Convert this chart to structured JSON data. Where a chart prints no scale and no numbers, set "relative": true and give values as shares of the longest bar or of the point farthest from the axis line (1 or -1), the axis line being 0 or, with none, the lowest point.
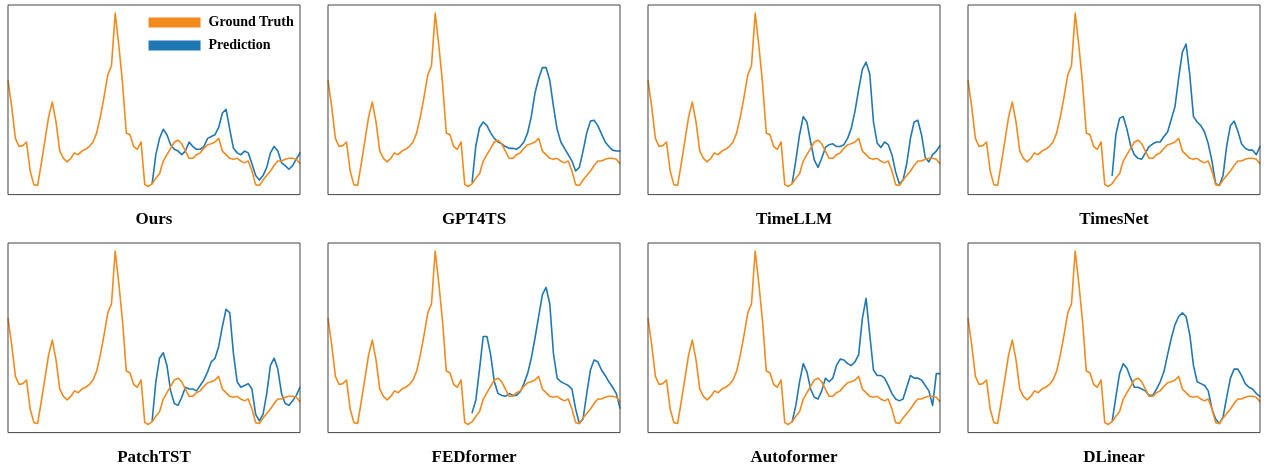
{
  "chart_data": [
    {
      "type": "line",
      "title": "Ours",
      "relative": true,
      "legend": "top right",
      "marker": "none",
      "line_style": "solid",
      "grid": false,
      "tick_labels": false,
      "categories": [
        null,
        null,
        null,
        null,
        null,
        null,
        null,
        null,
        null,
        null,
        null,
        null,
        null,
        null,
        null,
        null,
        null,
        null,
        null,
        null,
        null,
        null,
        null,
        null,
        null,
        null,
        null,
        null,
        null,
        null,
        null,
        null,
        null,
        null,
        null,
        null,
        null,
        null,
        null,
        null,
        null,
        null,
        null,
        null,
        null,
        null,
        null,
        null,
        null,
        null,
        null,
        null,
        null,
        null,
        null,
        null,
        null,
        null,
        null,
        null,
        null,
        null,
        null,
        null,
        null,
        null,
        null,
        null,
        null,
        null,
        null,
        null,
        null,
        null,
        null,
        null,
        null,
        null,
        null,
        null
      ],
      "series": [
        {
          "name": "Ground Truth",
          "color": "#f28a1e",
          "values": [
            0.63,
            0.485,
            0.31,
            0.265,
            0.27,
            0.29,
            0.13,
            0.055,
            0.05,
            0.17,
            0.3,
            0.43,
            0.51,
            0.4,
            0.24,
            0.2,
            0.18,
            0.2,
            0.23,
            0.22,
            0.24,
            0.25,
            0.265,
            0.29,
            0.34,
            0.43,
            0.54,
            0.66,
            0.71,
            1.0,
            0.82,
            0.61,
            0.34,
            0.33,
            0.265,
            0.25,
            0.29,
            0.055,
            0.045,
            0.06,
            0.09,
            0.115,
            0.185,
            0.22,
            0.255,
            0.29,
            0.3,
            0.28,
            0.24,
            0.2,
            0.2,
            0.22,
            0.23,
            0.255,
            0.275,
            0.28,
            0.29,
            0.31,
            0.24,
            0.22,
            0.2,
            0.195,
            0.2,
            0.185,
            0.175,
            0.185,
            0.13,
            0.055,
            0.05,
            0.08,
            0.105,
            0.13,
            0.16,
            0.185,
            0.185,
            0.195,
            0.2,
            0.2,
            0.195,
            0.17
          ]
        },
        {
          "name": "Prediction",
          "color": "#1f77b4",
          "values": [
            null,
            null,
            null,
            null,
            null,
            null,
            null,
            null,
            null,
            null,
            null,
            null,
            null,
            null,
            null,
            null,
            null,
            null,
            null,
            null,
            null,
            null,
            null,
            null,
            null,
            null,
            null,
            null,
            null,
            null,
            null,
            null,
            null,
            null,
            null,
            null,
            null,
            null,
            null,
            0.06,
            0.22,
            0.31,
            0.36,
            0.33,
            0.275,
            0.25,
            0.24,
            0.22,
            0.24,
            0.29,
            0.265,
            0.25,
            0.25,
            0.265,
            0.31,
            0.32,
            0.33,
            0.37,
            0.45,
            0.47,
            0.36,
            0.255,
            0.23,
            0.22,
            0.24,
            0.23,
            0.17,
            0.105,
            0.08,
            0.105,
            0.15,
            0.23,
            0.265,
            0.24,
            0.175,
            0.16,
            0.14,
            0.16,
            0.195,
            0.23
          ]
        }
      ]
    },
    {
      "type": "line",
      "title": "GPT4TS",
      "relative": true,
      "marker": "none",
      "line_style": "solid",
      "grid": false,
      "tick_labels": false,
      "categories": [
        null,
        null,
        null,
        null,
        null,
        null,
        null,
        null,
        null,
        null,
        null,
        null,
        null,
        null,
        null,
        null,
        null,
        null,
        null,
        null,
        null,
        null,
        null,
        null,
        null,
        null,
        null,
        null,
        null,
        null,
        null,
        null,
        null,
        null,
        null,
        null,
        null,
        null,
        null,
        null,
        null,
        null,
        null,
        null,
        null,
        null,
        null,
        null,
        null,
        null,
        null,
        null,
        null,
        null,
        null,
        null,
        null,
        null,
        null,
        null,
        null,
        null,
        null,
        null,
        null,
        null,
        null,
        null,
        null,
        null,
        null,
        null,
        null,
        null,
        null,
        null,
        null,
        null,
        null,
        null
      ],
      "series": [
        {
          "color": "#f28a1e",
          "values": [
            0.63,
            0.485,
            0.31,
            0.265,
            0.27,
            0.29,
            0.13,
            0.055,
            0.05,
            0.17,
            0.3,
            0.43,
            0.51,
            0.4,
            0.24,
            0.2,
            0.18,
            0.2,
            0.23,
            0.22,
            0.24,
            0.25,
            0.265,
            0.29,
            0.34,
            0.43,
            0.54,
            0.66,
            0.71,
            1.0,
            0.82,
            0.61,
            0.34,
            0.33,
            0.265,
            0.25,
            0.29,
            0.055,
            0.045,
            0.06,
            0.09,
            0.115,
            0.185,
            0.22,
            0.255,
            0.29,
            0.3,
            0.28,
            0.24,
            0.2,
            0.2,
            0.22,
            0.23,
            0.255,
            0.275,
            0.28,
            0.29,
            0.31,
            0.24,
            0.22,
            0.2,
            0.195,
            0.2,
            0.185,
            0.175,
            0.185,
            0.13,
            0.055,
            0.05,
            0.08,
            0.105,
            0.13,
            0.16,
            0.185,
            0.185,
            0.195,
            0.2,
            0.2,
            0.195,
            0.17
          ]
        },
        {
          "color": "#1f77b4",
          "values": [
            null,
            null,
            null,
            null,
            null,
            null,
            null,
            null,
            null,
            null,
            null,
            null,
            null,
            null,
            null,
            null,
            null,
            null,
            null,
            null,
            null,
            null,
            null,
            null,
            null,
            null,
            null,
            null,
            null,
            null,
            null,
            null,
            null,
            null,
            null,
            null,
            null,
            null,
            null,
            0.07,
            0.27,
            0.37,
            0.4,
            0.38,
            0.34,
            0.31,
            0.29,
            0.28,
            0.265,
            0.255,
            0.255,
            0.25,
            0.265,
            0.29,
            0.34,
            0.43,
            0.56,
            0.64,
            0.7,
            0.7,
            0.63,
            0.485,
            0.36,
            0.29,
            0.255,
            0.22,
            0.185,
            0.13,
            0.15,
            0.24,
            0.34,
            0.405,
            0.41,
            0.38,
            0.335,
            0.29,
            0.265,
            0.245,
            0.24,
            0.24
          ]
        }
      ]
    },
    {
      "type": "line",
      "title": "TimeLLM",
      "relative": true,
      "marker": "none",
      "line_style": "solid",
      "grid": false,
      "tick_labels": false,
      "categories": [
        null,
        null,
        null,
        null,
        null,
        null,
        null,
        null,
        null,
        null,
        null,
        null,
        null,
        null,
        null,
        null,
        null,
        null,
        null,
        null,
        null,
        null,
        null,
        null,
        null,
        null,
        null,
        null,
        null,
        null,
        null,
        null,
        null,
        null,
        null,
        null,
        null,
        null,
        null,
        null,
        null,
        null,
        null,
        null,
        null,
        null,
        null,
        null,
        null,
        null,
        null,
        null,
        null,
        null,
        null,
        null,
        null,
        null,
        null,
        null,
        null,
        null,
        null,
        null,
        null,
        null,
        null,
        null,
        null,
        null,
        null,
        null,
        null,
        null,
        null,
        null,
        null,
        null,
        null,
        null
      ],
      "series": [
        {
          "color": "#f28a1e",
          "values": [
            0.63,
            0.485,
            0.31,
            0.265,
            0.27,
            0.29,
            0.13,
            0.055,
            0.05,
            0.17,
            0.3,
            0.43,
            0.51,
            0.4,
            0.24,
            0.2,
            0.18,
            0.2,
            0.23,
            0.22,
            0.24,
            0.25,
            0.265,
            0.29,
            0.34,
            0.43,
            0.54,
            0.66,
            0.71,
            1.0,
            0.82,
            0.61,
            0.34,
            0.33,
            0.265,
            0.25,
            0.29,
            0.055,
            0.045,
            0.06,
            0.09,
            0.115,
            0.185,
            0.22,
            0.255,
            0.29,
            0.3,
            0.28,
            0.24,
            0.2,
            0.2,
            0.22,
            0.23,
            0.255,
            0.275,
            0.28,
            0.29,
            0.31,
            0.24,
            0.22,
            0.2,
            0.195,
            0.2,
            0.185,
            0.175,
            0.185,
            0.13,
            0.055,
            0.05,
            0.08,
            0.105,
            0.13,
            0.16,
            0.185,
            0.185,
            0.195,
            0.2,
            0.2,
            0.195,
            0.17
          ]
        },
        {
          "color": "#1f77b4",
          "values": [
            null,
            null,
            null,
            null,
            null,
            null,
            null,
            null,
            null,
            null,
            null,
            null,
            null,
            null,
            null,
            null,
            null,
            null,
            null,
            null,
            null,
            null,
            null,
            null,
            null,
            null,
            null,
            null,
            null,
            null,
            null,
            null,
            null,
            null,
            null,
            null,
            null,
            null,
            null,
            0.06,
            0.19,
            0.33,
            0.43,
            0.4,
            0.29,
            0.19,
            0.15,
            0.2,
            0.26,
            0.275,
            0.28,
            0.265,
            0.265,
            0.275,
            0.31,
            0.365,
            0.46,
            0.58,
            0.69,
            0.73,
            0.665,
            0.4,
            0.285,
            0.26,
            0.29,
            0.275,
            0.22,
            0.125,
            0.06,
            0.08,
            0.17,
            0.31,
            0.4,
            0.41,
            0.33,
            0.205,
            0.18,
            0.22,
            0.24,
            0.27
          ]
        }
      ]
    },
    {
      "type": "line",
      "title": "TimesNet",
      "relative": true,
      "marker": "none",
      "line_style": "solid",
      "grid": false,
      "tick_labels": false,
      "categories": [
        null,
        null,
        null,
        null,
        null,
        null,
        null,
        null,
        null,
        null,
        null,
        null,
        null,
        null,
        null,
        null,
        null,
        null,
        null,
        null,
        null,
        null,
        null,
        null,
        null,
        null,
        null,
        null,
        null,
        null,
        null,
        null,
        null,
        null,
        null,
        null,
        null,
        null,
        null,
        null,
        null,
        null,
        null,
        null,
        null,
        null,
        null,
        null,
        null,
        null,
        null,
        null,
        null,
        null,
        null,
        null,
        null,
        null,
        null,
        null,
        null,
        null,
        null,
        null,
        null,
        null,
        null,
        null,
        null,
        null,
        null,
        null,
        null,
        null,
        null,
        null,
        null,
        null,
        null,
        null
      ],
      "series": [
        {
          "color": "#f28a1e",
          "values": [
            0.63,
            0.485,
            0.31,
            0.265,
            0.27,
            0.29,
            0.13,
            0.055,
            0.05,
            0.17,
            0.3,
            0.43,
            0.51,
            0.4,
            0.24,
            0.2,
            0.18,
            0.2,
            0.23,
            0.22,
            0.24,
            0.25,
            0.265,
            0.29,
            0.34,
            0.43,
            0.54,
            0.66,
            0.71,
            1.0,
            0.82,
            0.61,
            0.34,
            0.33,
            0.265,
            0.25,
            0.29,
            0.055,
            0.045,
            0.06,
            0.09,
            0.115,
            0.185,
            0.22,
            0.255,
            0.29,
            0.3,
            0.28,
            0.24,
            0.2,
            0.2,
            0.22,
            0.23,
            0.255,
            0.275,
            0.28,
            0.29,
            0.31,
            0.24,
            0.22,
            0.2,
            0.195,
            0.2,
            0.185,
            0.175,
            0.185,
            0.13,
            0.055,
            0.05,
            0.08,
            0.105,
            0.13,
            0.16,
            0.185,
            0.185,
            0.195,
            0.2,
            0.2,
            0.195,
            0.17
          ]
        },
        {
          "color": "#1f77b4",
          "values": [
            null,
            null,
            null,
            null,
            null,
            null,
            null,
            null,
            null,
            null,
            null,
            null,
            null,
            null,
            null,
            null,
            null,
            null,
            null,
            null,
            null,
            null,
            null,
            null,
            null,
            null,
            null,
            null,
            null,
            null,
            null,
            null,
            null,
            null,
            null,
            null,
            null,
            null,
            null,
            0.105,
            0.33,
            0.42,
            0.43,
            0.36,
            0.27,
            0.22,
            0.2,
            0.195,
            0.23,
            0.265,
            0.28,
            0.29,
            0.29,
            0.32,
            0.345,
            0.415,
            0.485,
            0.645,
            0.785,
            0.83,
            0.66,
            0.43,
            0.4,
            0.38,
            0.345,
            0.28,
            0.185,
            0.06,
            0.05,
            0.105,
            0.27,
            0.38,
            0.405,
            0.35,
            0.28,
            0.255,
            0.245,
            0.245,
            0.22,
            0.265
          ]
        }
      ]
    },
    {
      "type": "line",
      "title": "PatchTST",
      "relative": true,
      "marker": "none",
      "line_style": "solid",
      "grid": false,
      "tick_labels": false,
      "categories": [
        null,
        null,
        null,
        null,
        null,
        null,
        null,
        null,
        null,
        null,
        null,
        null,
        null,
        null,
        null,
        null,
        null,
        null,
        null,
        null,
        null,
        null,
        null,
        null,
        null,
        null,
        null,
        null,
        null,
        null,
        null,
        null,
        null,
        null,
        null,
        null,
        null,
        null,
        null,
        null,
        null,
        null,
        null,
        null,
        null,
        null,
        null,
        null,
        null,
        null,
        null,
        null,
        null,
        null,
        null,
        null,
        null,
        null,
        null,
        null,
        null,
        null,
        null,
        null,
        null,
        null,
        null,
        null,
        null,
        null,
        null,
        null,
        null,
        null,
        null,
        null,
        null,
        null,
        null,
        null
      ],
      "series": [
        {
          "color": "#f28a1e",
          "values": [
            0.63,
            0.485,
            0.31,
            0.265,
            0.27,
            0.29,
            0.13,
            0.055,
            0.05,
            0.17,
            0.3,
            0.43,
            0.51,
            0.4,
            0.24,
            0.2,
            0.18,
            0.2,
            0.23,
            0.22,
            0.24,
            0.25,
            0.265,
            0.29,
            0.34,
            0.43,
            0.54,
            0.66,
            0.71,
            1.0,
            0.82,
            0.61,
            0.34,
            0.33,
            0.265,
            0.25,
            0.29,
            0.055,
            0.045,
            0.06,
            0.09,
            0.115,
            0.185,
            0.22,
            0.255,
            0.29,
            0.3,
            0.28,
            0.24,
            0.2,
            0.2,
            0.22,
            0.23,
            0.255,
            0.275,
            0.28,
            0.29,
            0.31,
            0.24,
            0.22,
            0.2,
            0.195,
            0.2,
            0.185,
            0.175,
            0.185,
            0.13,
            0.055,
            0.05,
            0.08,
            0.105,
            0.13,
            0.16,
            0.185,
            0.185,
            0.195,
            0.2,
            0.2,
            0.195,
            0.17
          ]
        },
        {
          "color": "#1f77b4",
          "values": [
            null,
            null,
            null,
            null,
            null,
            null,
            null,
            null,
            null,
            null,
            null,
            null,
            null,
            null,
            null,
            null,
            null,
            null,
            null,
            null,
            null,
            null,
            null,
            null,
            null,
            null,
            null,
            null,
            null,
            null,
            null,
            null,
            null,
            null,
            null,
            null,
            null,
            null,
            null,
            0.065,
            0.28,
            0.41,
            0.44,
            0.37,
            0.23,
            0.16,
            0.15,
            0.195,
            0.25,
            0.24,
            0.24,
            0.23,
            0.26,
            0.29,
            0.335,
            0.39,
            0.41,
            0.475,
            0.585,
            0.68,
            0.66,
            0.435,
            0.28,
            0.25,
            0.26,
            0.27,
            0.24,
            0.1,
            0.065,
            0.1,
            0.215,
            0.37,
            0.41,
            0.35,
            0.215,
            0.16,
            0.15,
            0.175,
            0.205,
            0.25
          ]
        }
      ]
    },
    {
      "type": "line",
      "title": "FEDformer",
      "relative": true,
      "marker": "none",
      "line_style": "solid",
      "grid": false,
      "tick_labels": false,
      "categories": [
        null,
        null,
        null,
        null,
        null,
        null,
        null,
        null,
        null,
        null,
        null,
        null,
        null,
        null,
        null,
        null,
        null,
        null,
        null,
        null,
        null,
        null,
        null,
        null,
        null,
        null,
        null,
        null,
        null,
        null,
        null,
        null,
        null,
        null,
        null,
        null,
        null,
        null,
        null,
        null,
        null,
        null,
        null,
        null,
        null,
        null,
        null,
        null,
        null,
        null,
        null,
        null,
        null,
        null,
        null,
        null,
        null,
        null,
        null,
        null,
        null,
        null,
        null,
        null,
        null,
        null,
        null,
        null,
        null,
        null,
        null,
        null,
        null,
        null,
        null,
        null,
        null,
        null,
        null,
        null
      ],
      "series": [
        {
          "color": "#f28a1e",
          "values": [
            0.63,
            0.485,
            0.31,
            0.265,
            0.27,
            0.29,
            0.13,
            0.055,
            0.05,
            0.17,
            0.3,
            0.43,
            0.51,
            0.4,
            0.24,
            0.2,
            0.18,
            0.2,
            0.23,
            0.22,
            0.24,
            0.25,
            0.265,
            0.29,
            0.34,
            0.43,
            0.54,
            0.66,
            0.71,
            1.0,
            0.82,
            0.61,
            0.34,
            0.33,
            0.265,
            0.25,
            0.29,
            0.055,
            0.045,
            0.06,
            0.09,
            0.115,
            0.185,
            0.22,
            0.255,
            0.29,
            0.3,
            0.28,
            0.24,
            0.2,
            0.2,
            0.22,
            0.23,
            0.255,
            0.275,
            0.28,
            0.29,
            0.31,
            0.24,
            0.22,
            0.2,
            0.195,
            0.2,
            0.185,
            0.175,
            0.185,
            0.13,
            0.055,
            0.05,
            0.08,
            0.105,
            0.13,
            0.16,
            0.185,
            0.185,
            0.195,
            0.2,
            0.2,
            0.195,
            0.17
          ]
        },
        {
          "color": "#1f77b4",
          "values": [
            null,
            null,
            null,
            null,
            null,
            null,
            null,
            null,
            null,
            null,
            null,
            null,
            null,
            null,
            null,
            null,
            null,
            null,
            null,
            null,
            null,
            null,
            null,
            null,
            null,
            null,
            null,
            null,
            null,
            null,
            null,
            null,
            null,
            null,
            null,
            null,
            null,
            null,
            null,
            0.11,
            0.18,
            0.35,
            0.53,
            0.53,
            0.43,
            0.28,
            0.215,
            0.205,
            0.2,
            0.215,
            0.205,
            0.205,
            0.225,
            0.27,
            0.325,
            0.41,
            0.52,
            0.64,
            0.76,
            0.8,
            0.71,
            0.435,
            0.3,
            0.28,
            0.27,
            0.26,
            0.24,
            0.13,
            0.05,
            0.075,
            0.215,
            0.345,
            0.4,
            0.39,
            0.345,
            0.315,
            0.28,
            0.25,
            0.215,
            0.135
          ]
        }
      ]
    },
    {
      "type": "line",
      "title": "Autoformer",
      "relative": true,
      "marker": "none",
      "line_style": "solid",
      "grid": false,
      "tick_labels": false,
      "categories": [
        null,
        null,
        null,
        null,
        null,
        null,
        null,
        null,
        null,
        null,
        null,
        null,
        null,
        null,
        null,
        null,
        null,
        null,
        null,
        null,
        null,
        null,
        null,
        null,
        null,
        null,
        null,
        null,
        null,
        null,
        null,
        null,
        null,
        null,
        null,
        null,
        null,
        null,
        null,
        null,
        null,
        null,
        null,
        null,
        null,
        null,
        null,
        null,
        null,
        null,
        null,
        null,
        null,
        null,
        null,
        null,
        null,
        null,
        null,
        null,
        null,
        null,
        null,
        null,
        null,
        null,
        null,
        null,
        null,
        null,
        null,
        null,
        null,
        null,
        null,
        null,
        null,
        null,
        null,
        null
      ],
      "series": [
        {
          "color": "#f28a1e",
          "values": [
            0.63,
            0.485,
            0.31,
            0.265,
            0.27,
            0.29,
            0.13,
            0.055,
            0.05,
            0.17,
            0.3,
            0.43,
            0.51,
            0.4,
            0.24,
            0.2,
            0.18,
            0.2,
            0.23,
            0.22,
            0.24,
            0.25,
            0.265,
            0.29,
            0.34,
            0.43,
            0.54,
            0.66,
            0.71,
            1.0,
            0.82,
            0.61,
            0.34,
            0.33,
            0.265,
            0.25,
            0.29,
            0.055,
            0.045,
            0.06,
            0.09,
            0.115,
            0.185,
            0.22,
            0.255,
            0.29,
            0.3,
            0.28,
            0.24,
            0.2,
            0.2,
            0.22,
            0.23,
            0.255,
            0.275,
            0.28,
            0.29,
            0.31,
            0.24,
            0.22,
            0.2,
            0.195,
            0.2,
            0.185,
            0.175,
            0.185,
            0.13,
            0.055,
            0.05,
            0.08,
            0.105,
            0.13,
            0.16,
            0.185,
            0.185,
            0.195,
            0.2,
            0.2,
            0.195,
            0.17
          ]
        },
        {
          "color": "#1f77b4",
          "values": [
            null,
            null,
            null,
            null,
            null,
            null,
            null,
            null,
            null,
            null,
            null,
            null,
            null,
            null,
            null,
            null,
            null,
            null,
            null,
            null,
            null,
            null,
            null,
            null,
            null,
            null,
            null,
            null,
            null,
            null,
            null,
            null,
            null,
            null,
            null,
            null,
            null,
            null,
            null,
            0.06,
            0.15,
            0.28,
            0.38,
            0.335,
            0.24,
            0.195,
            0.185,
            0.23,
            0.3,
            0.28,
            0.3,
            0.37,
            0.405,
            0.4,
            0.38,
            0.37,
            0.39,
            0.43,
            0.63,
            0.74,
            0.54,
            0.345,
            0.315,
            0.315,
            0.3,
            0.26,
            0.215,
            0.185,
            0.175,
            0.185,
            0.25,
            0.315,
            0.3,
            0.3,
            0.29,
            0.26,
            0.23,
            0.15,
            0.325,
            0.325
          ]
        }
      ]
    },
    {
      "type": "line",
      "title": "DLinear",
      "relative": true,
      "marker": "none",
      "line_style": "solid",
      "grid": false,
      "tick_labels": false,
      "categories": [
        null,
        null,
        null,
        null,
        null,
        null,
        null,
        null,
        null,
        null,
        null,
        null,
        null,
        null,
        null,
        null,
        null,
        null,
        null,
        null,
        null,
        null,
        null,
        null,
        null,
        null,
        null,
        null,
        null,
        null,
        null,
        null,
        null,
        null,
        null,
        null,
        null,
        null,
        null,
        null,
        null,
        null,
        null,
        null,
        null,
        null,
        null,
        null,
        null,
        null,
        null,
        null,
        null,
        null,
        null,
        null,
        null,
        null,
        null,
        null,
        null,
        null,
        null,
        null,
        null,
        null,
        null,
        null,
        null,
        null,
        null,
        null,
        null,
        null,
        null,
        null,
        null,
        null,
        null,
        null
      ],
      "series": [
        {
          "color": "#f28a1e",
          "values": [
            0.63,
            0.485,
            0.31,
            0.265,
            0.27,
            0.29,
            0.13,
            0.055,
            0.05,
            0.17,
            0.3,
            0.43,
            0.51,
            0.4,
            0.24,
            0.2,
            0.18,
            0.2,
            0.23,
            0.22,
            0.24,
            0.25,
            0.265,
            0.29,
            0.34,
            0.43,
            0.54,
            0.66,
            0.71,
            1.0,
            0.82,
            0.61,
            0.34,
            0.33,
            0.265,
            0.25,
            0.29,
            0.055,
            0.045,
            0.06,
            0.09,
            0.115,
            0.185,
            0.22,
            0.255,
            0.29,
            0.3,
            0.28,
            0.24,
            0.2,
            0.2,
            0.22,
            0.23,
            0.255,
            0.275,
            0.28,
            0.29,
            0.31,
            0.24,
            0.22,
            0.2,
            0.195,
            0.2,
            0.185,
            0.175,
            0.185,
            0.13,
            0.055,
            0.05,
            0.08,
            0.105,
            0.13,
            0.16,
            0.185,
            0.185,
            0.195,
            0.2,
            0.2,
            0.195,
            0.17
          ]
        },
        {
          "color": "#1f77b4",
          "values": [
            null,
            null,
            null,
            null,
            null,
            null,
            null,
            null,
            null,
            null,
            null,
            null,
            null,
            null,
            null,
            null,
            null,
            null,
            null,
            null,
            null,
            null,
            null,
            null,
            null,
            null,
            null,
            null,
            null,
            null,
            null,
            null,
            null,
            null,
            null,
            null,
            null,
            null,
            null,
            0.06,
            0.195,
            0.325,
            0.38,
            0.355,
            0.3,
            0.25,
            0.25,
            0.24,
            0.23,
            0.205,
            0.205,
            0.24,
            0.28,
            0.335,
            0.43,
            0.52,
            0.595,
            0.64,
            0.66,
            0.64,
            0.54,
            0.37,
            0.28,
            0.27,
            0.26,
            0.23,
            0.13,
            0.075,
            0.05,
            0.085,
            0.195,
            0.3,
            0.35,
            0.35,
            0.315,
            0.27,
            0.25,
            0.24,
            0.215,
            0.2
          ]
        }
      ]
    }
  ]
}
